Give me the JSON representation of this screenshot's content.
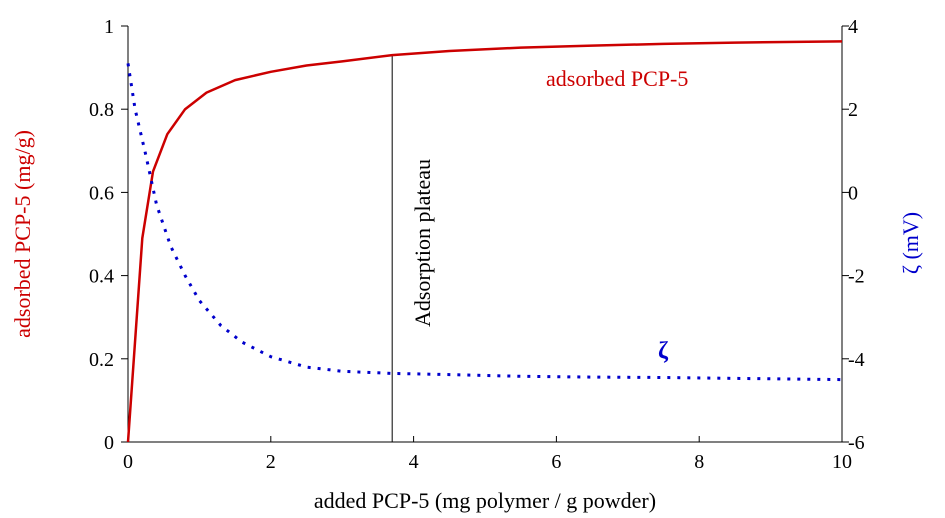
{
  "chart_data": {
    "type": "line",
    "xlabel": "added PCP-5  (mg polymer / g powder)",
    "ylabel_left": "adsorbed PCP-5 (mg/g)",
    "ylabel_right": "ζ (mV)",
    "xlim": [
      0,
      10
    ],
    "ylim_left": [
      0,
      1
    ],
    "ylim_right": [
      -6,
      4
    ],
    "x_ticks": [
      "0",
      "2",
      "4",
      "6",
      "8",
      "10"
    ],
    "y_left_ticks": [
      "0",
      "0.2",
      "0.4",
      "0.6",
      "0.8",
      "1"
    ],
    "y_right_ticks": [
      "-6",
      "-4",
      "-2",
      "0",
      "2",
      "4"
    ],
    "grid": false,
    "series": [
      {
        "name": "adsorbed PCP-5",
        "axis": "left",
        "color": "#cc0000",
        "style": "solid",
        "x": [
          0,
          0.2,
          0.35,
          0.55,
          0.8,
          1.1,
          1.5,
          2.0,
          2.5,
          3.0,
          3.7,
          4.5,
          5.5,
          6.5,
          7.5,
          8.5,
          10
        ],
        "y": [
          0.0,
          0.49,
          0.65,
          0.74,
          0.8,
          0.84,
          0.87,
          0.89,
          0.905,
          0.915,
          0.93,
          0.94,
          0.948,
          0.953,
          0.957,
          0.96,
          0.963
        ]
      },
      {
        "name": "ζ",
        "axis": "right",
        "color": "#0000cc",
        "style": "dotted",
        "x": [
          0,
          0.1,
          0.25,
          0.4,
          0.6,
          0.8,
          1.0,
          1.3,
          1.6,
          2.0,
          2.5,
          3.0,
          3.7,
          4.5,
          5.5,
          6.5,
          7.5,
          8.5,
          10
        ],
        "y": [
          3.1,
          2.0,
          0.9,
          -0.3,
          -1.3,
          -2.0,
          -2.6,
          -3.2,
          -3.6,
          -3.95,
          -4.2,
          -4.3,
          -4.35,
          -4.38,
          -4.42,
          -4.44,
          -4.45,
          -4.47,
          -4.5
        ]
      }
    ],
    "annotations": [
      {
        "text": "adsorbed PCP-5"
      },
      {
        "text": "ζ"
      },
      {
        "text": "Adsorption plateau",
        "x": 3.7
      }
    ]
  }
}
